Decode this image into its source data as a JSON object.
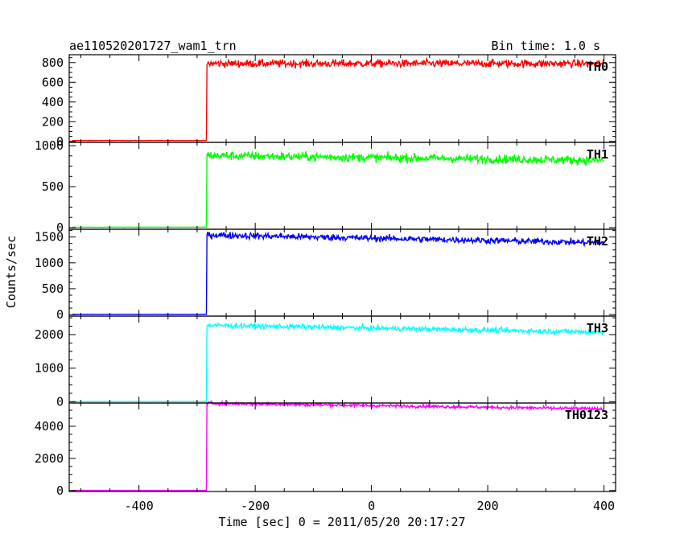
{
  "header": {
    "title": "ae110520201727_wam1_trn",
    "bin_time": "Bin time: 1.0 s"
  },
  "chart_data": {
    "type": "line",
    "xlabel": "Time [sec] 0 = 2011/05/20 20:17:27",
    "ylabel": "Counts/sec",
    "xlim": [
      -520,
      420
    ],
    "x_ticks": [
      -400,
      -200,
      0,
      200,
      400
    ],
    "trigger_time": -283,
    "panels": [
      {
        "name": "TH0",
        "color": "#ff0000",
        "ylim": [
          -10,
          880
        ],
        "y_ticks": [
          0,
          200,
          400,
          600,
          800
        ],
        "pre_level": 8,
        "post_start": 790,
        "post_end": 790,
        "noise": 28
      },
      {
        "name": "TH1",
        "color": "#00ff00",
        "ylim": [
          -20,
          1040
        ],
        "y_ticks": [
          0,
          500,
          1000
        ],
        "pre_level": 5,
        "post_start": 880,
        "post_end": 820,
        "noise": 38
      },
      {
        "name": "TH2",
        "color": "#0000ff",
        "ylim": [
          -30,
          1650
        ],
        "y_ticks": [
          0,
          500,
          1000,
          1500
        ],
        "pre_level": 6,
        "post_start": 1540,
        "post_end": 1390,
        "noise": 45
      },
      {
        "name": "TH3",
        "color": "#00ffff",
        "ylim": [
          -40,
          2550
        ],
        "y_ticks": [
          0,
          1000,
          2000
        ],
        "pre_level": 4,
        "post_start": 2280,
        "post_end": 2070,
        "noise": 55
      },
      {
        "name": "TH0123",
        "color": "#ff00ff",
        "ylim": [
          -60,
          5450
        ],
        "y_ticks": [
          0,
          2000,
          4000
        ],
        "pre_level": 10,
        "post_start": 5440,
        "post_end": 5080,
        "noise": 70
      }
    ]
  }
}
